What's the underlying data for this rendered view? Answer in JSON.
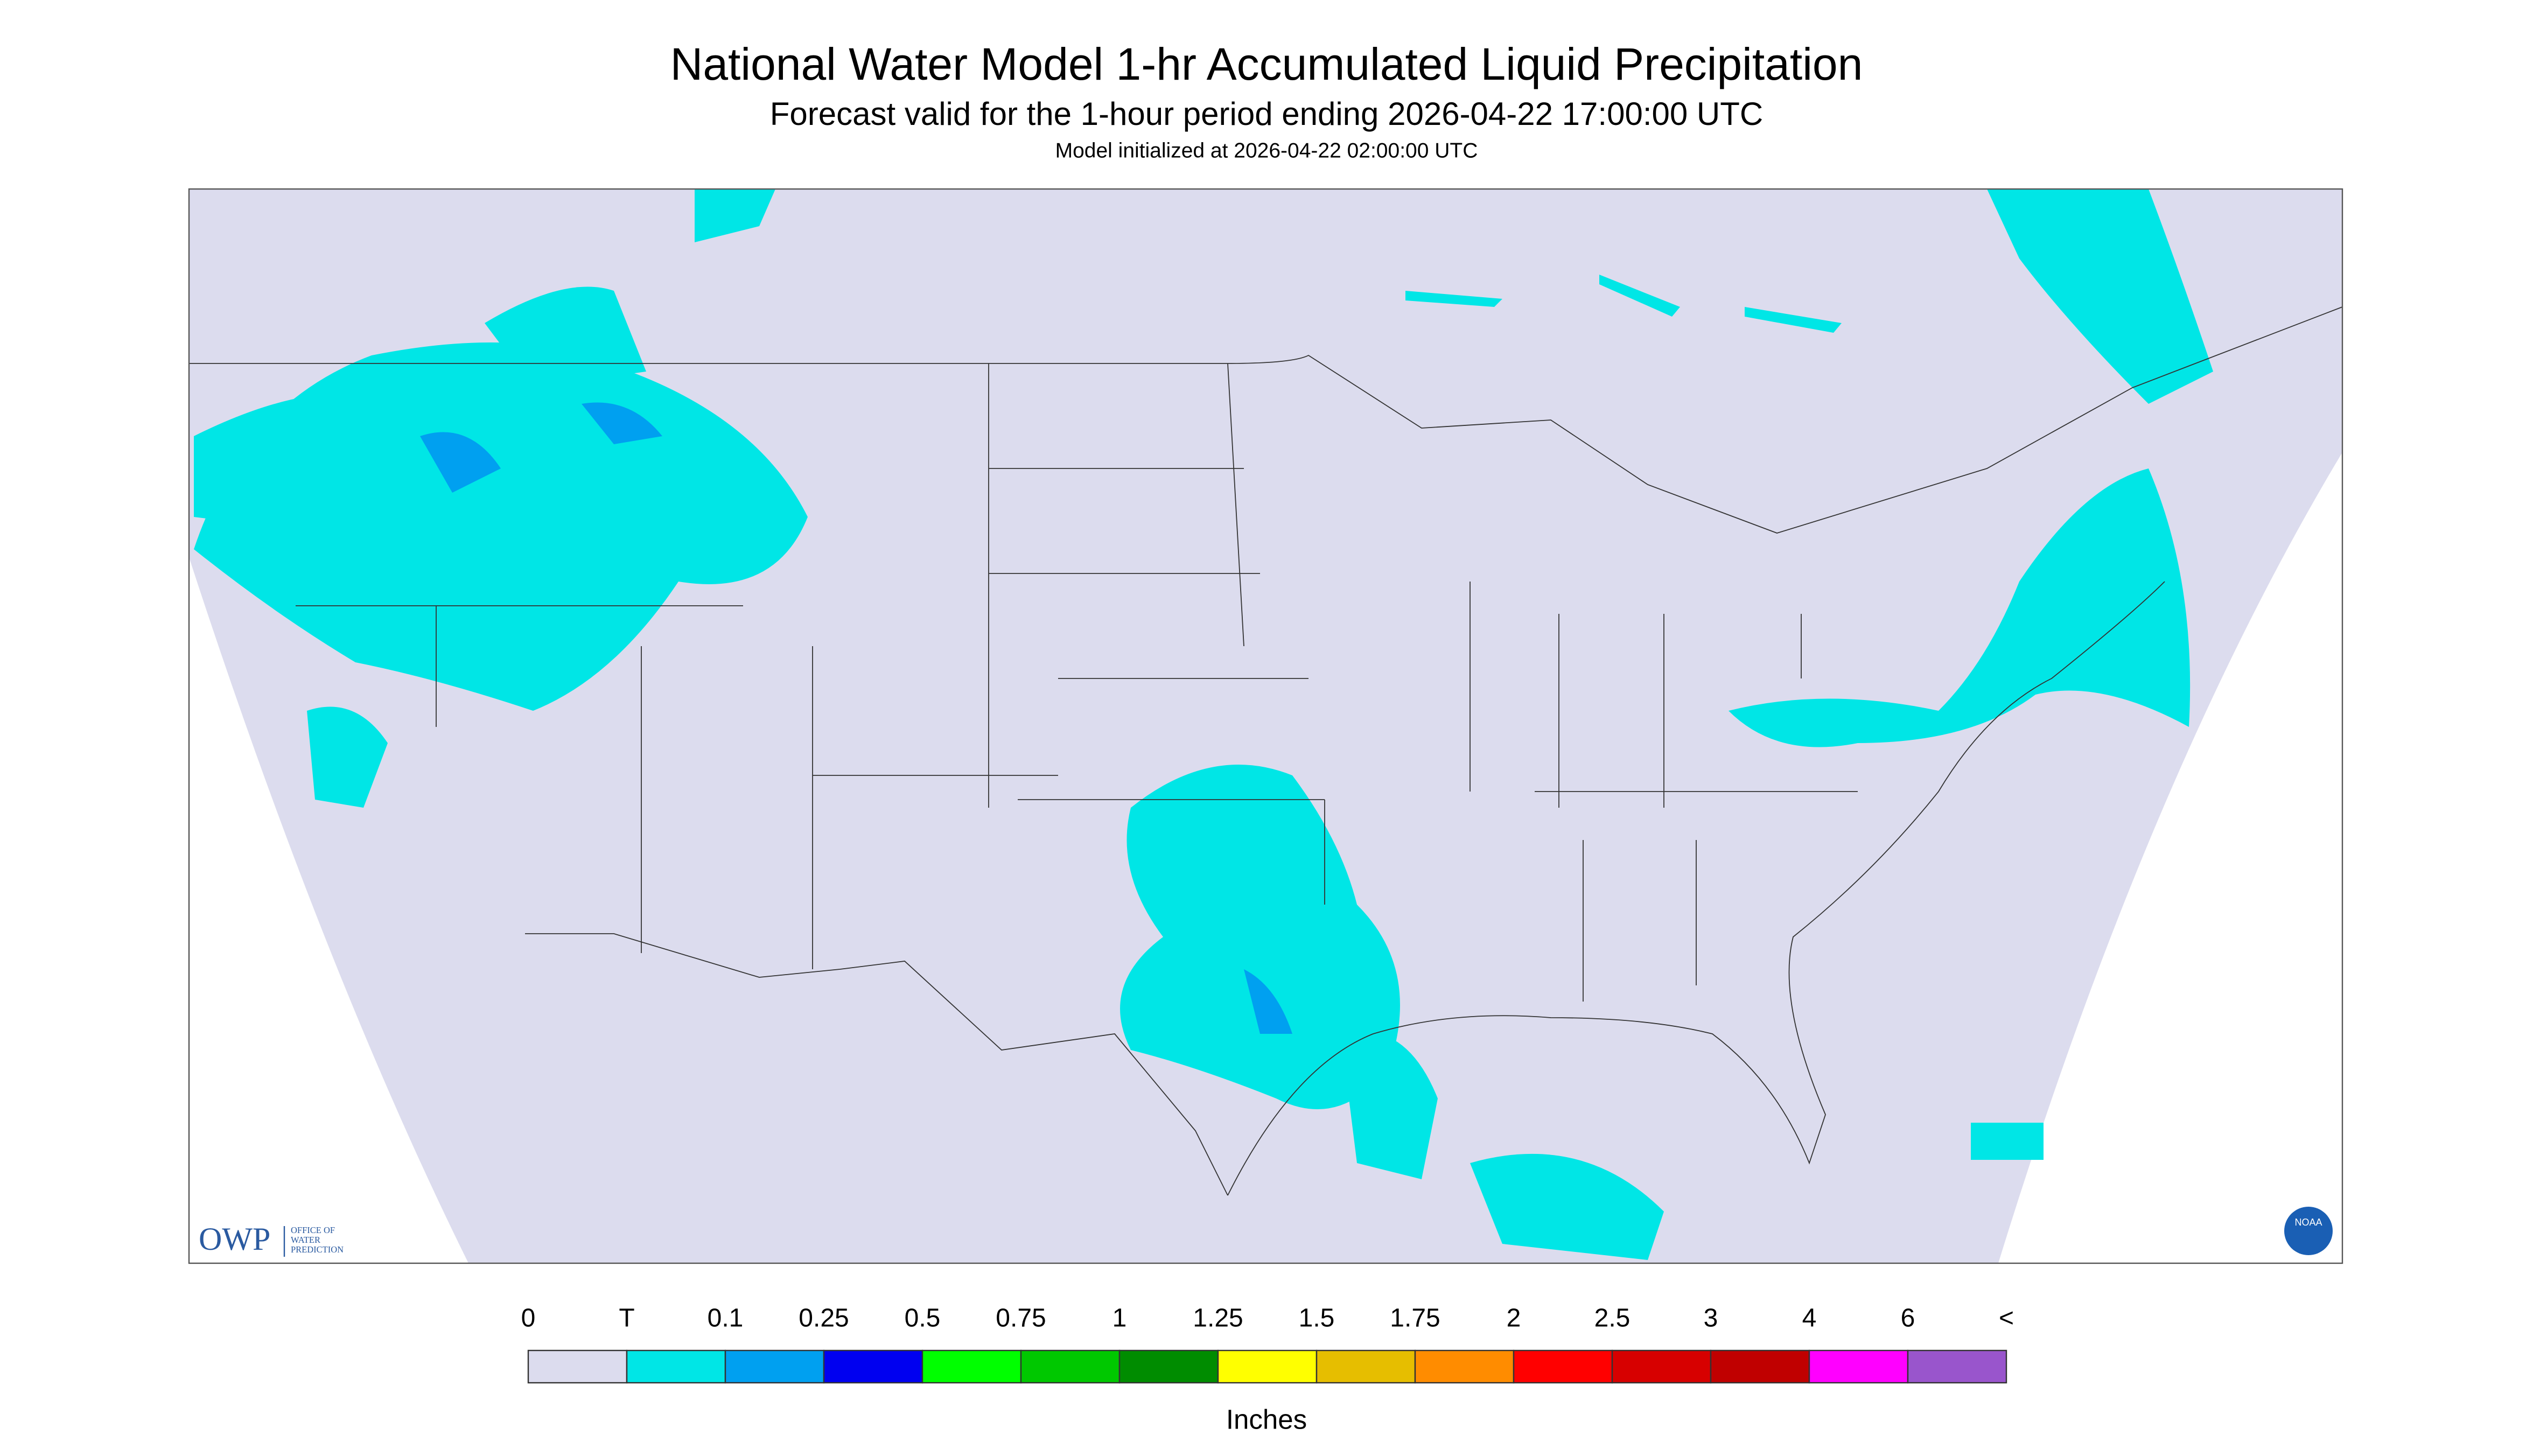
{
  "header": {
    "title": "National Water Model 1-hr Accumulated Liquid Precipitation",
    "subtitle": "Forecast valid for the 1-hour period ending 2026-04-22 17:00:00 UTC",
    "note": "Model initialized at 2026-04-22 02:00:00 UTC"
  },
  "legend": {
    "labels": [
      "0",
      "T",
      "0.1",
      "0.25",
      "0.5",
      "0.75",
      "1",
      "1.25",
      "1.5",
      "1.75",
      "2",
      "2.5",
      "3",
      "4",
      "6",
      "<"
    ],
    "colors": [
      "#dcdcee",
      "#00e6e6",
      "#00a0f0",
      "#0000f0",
      "#00ff00",
      "#00c800",
      "#008c00",
      "#ffff00",
      "#e6be00",
      "#ff8c00",
      "#ff0000",
      "#d70000",
      "#c00000",
      "#ff00ff",
      "#9955cc"
    ],
    "unit": "Inches"
  },
  "logo": {
    "acronym": "OWP",
    "lines": [
      "OFFICE OF",
      "WATER",
      "PREDICTION"
    ],
    "agency": "NOAA"
  }
}
